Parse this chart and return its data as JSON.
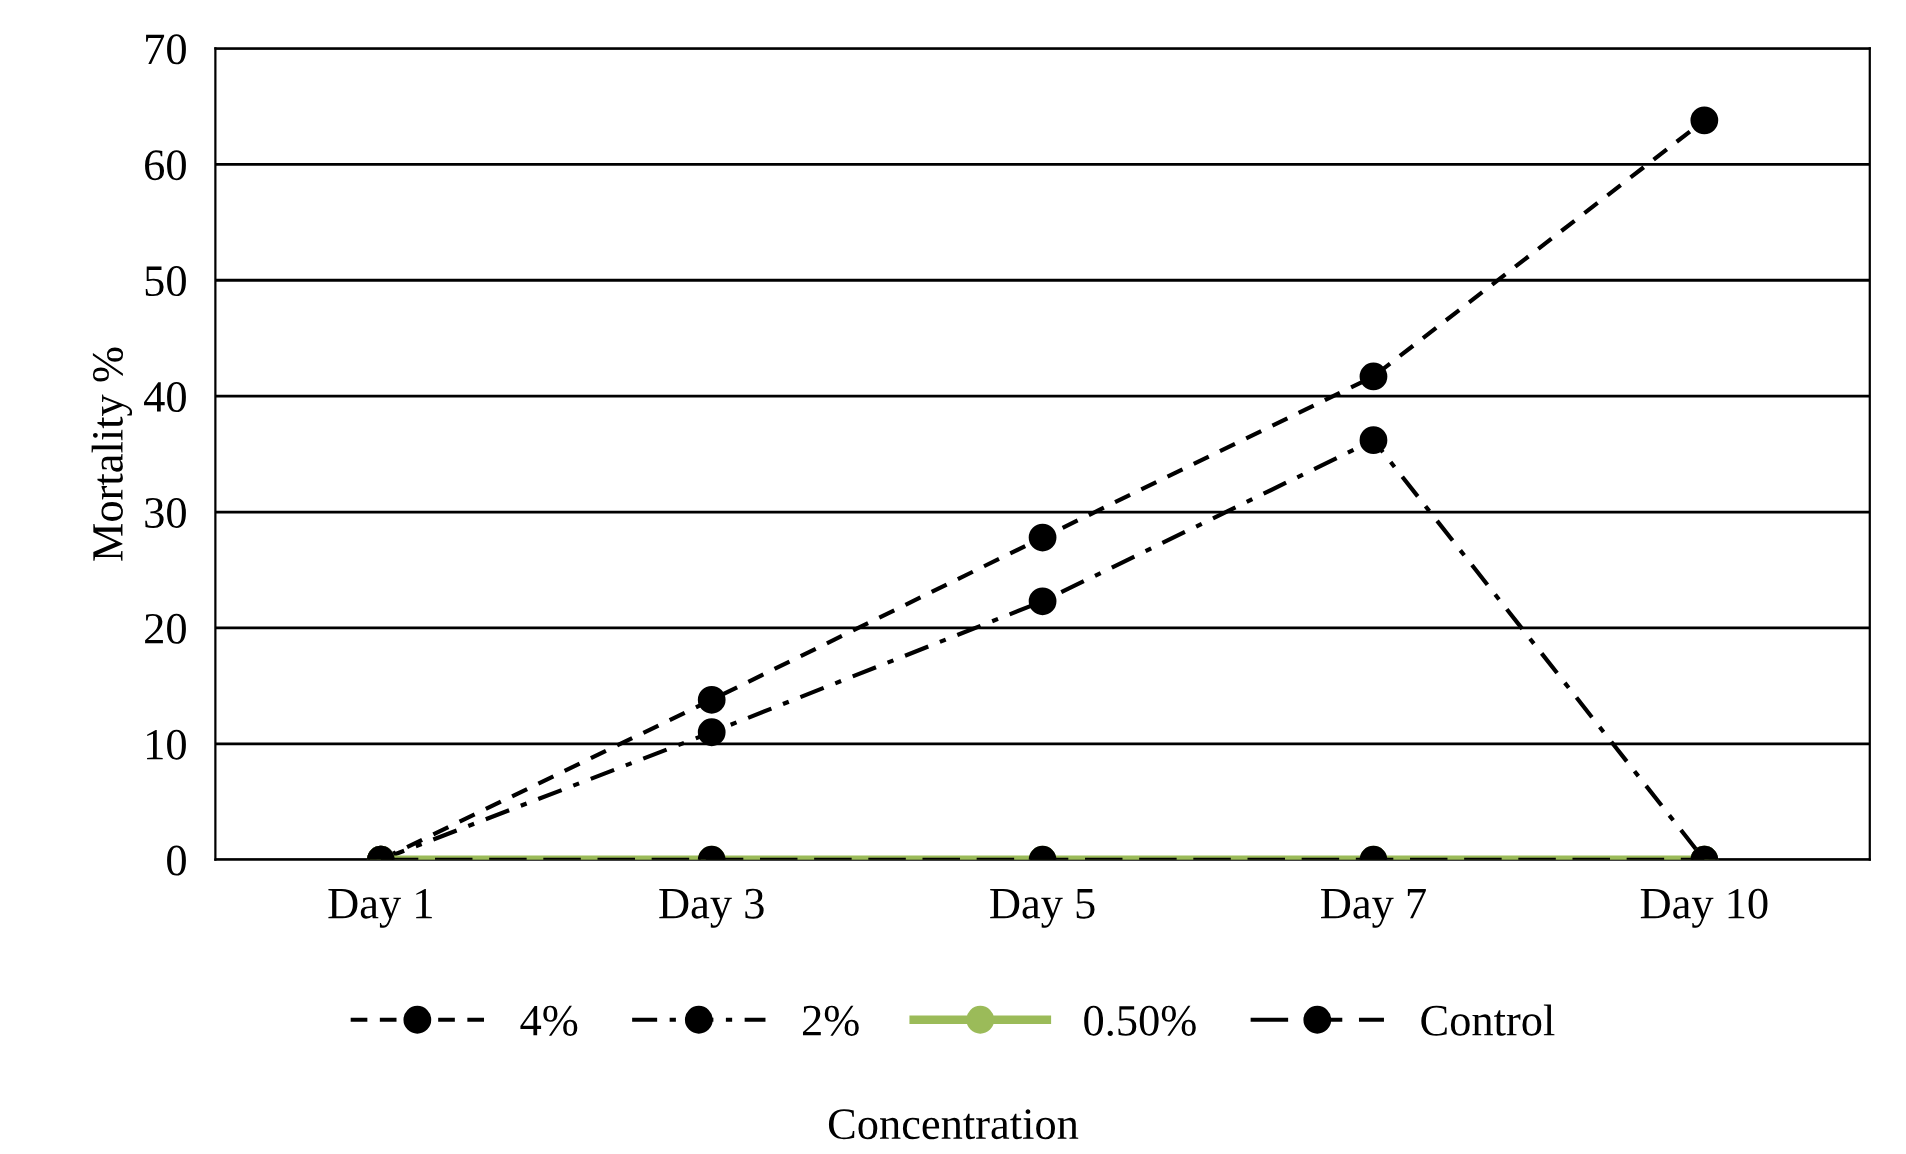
{
  "chart_data": {
    "type": "line",
    "ylabel": "Mortality %",
    "legend_title": "Concentration",
    "categories": [
      "Day 1",
      "Day 3",
      "Day 5",
      "Day 7",
      "Day 10"
    ],
    "series": [
      {
        "name": "4%",
        "color": "#000000",
        "line_style": "dashed",
        "values": [
          0,
          13.8,
          27.8,
          41.7,
          63.8
        ]
      },
      {
        "name": "2%",
        "color": "#000000",
        "line_style": "dashdot",
        "values": [
          0,
          11,
          22.3,
          36.2,
          0
        ]
      },
      {
        "name": "0.50%",
        "color": "#9bbb59",
        "line_style": "solid",
        "values": [
          0,
          0,
          0,
          0,
          0
        ]
      },
      {
        "name": "Control",
        "color": "#000000",
        "line_style": "longdash",
        "values": [
          0,
          0,
          0,
          0,
          0
        ]
      }
    ],
    "ylim": [
      0,
      70
    ],
    "yticks": [
      0,
      10,
      20,
      30,
      40,
      50,
      60,
      70
    ],
    "grid": "y",
    "legend": "bottom",
    "marker": "circle"
  }
}
